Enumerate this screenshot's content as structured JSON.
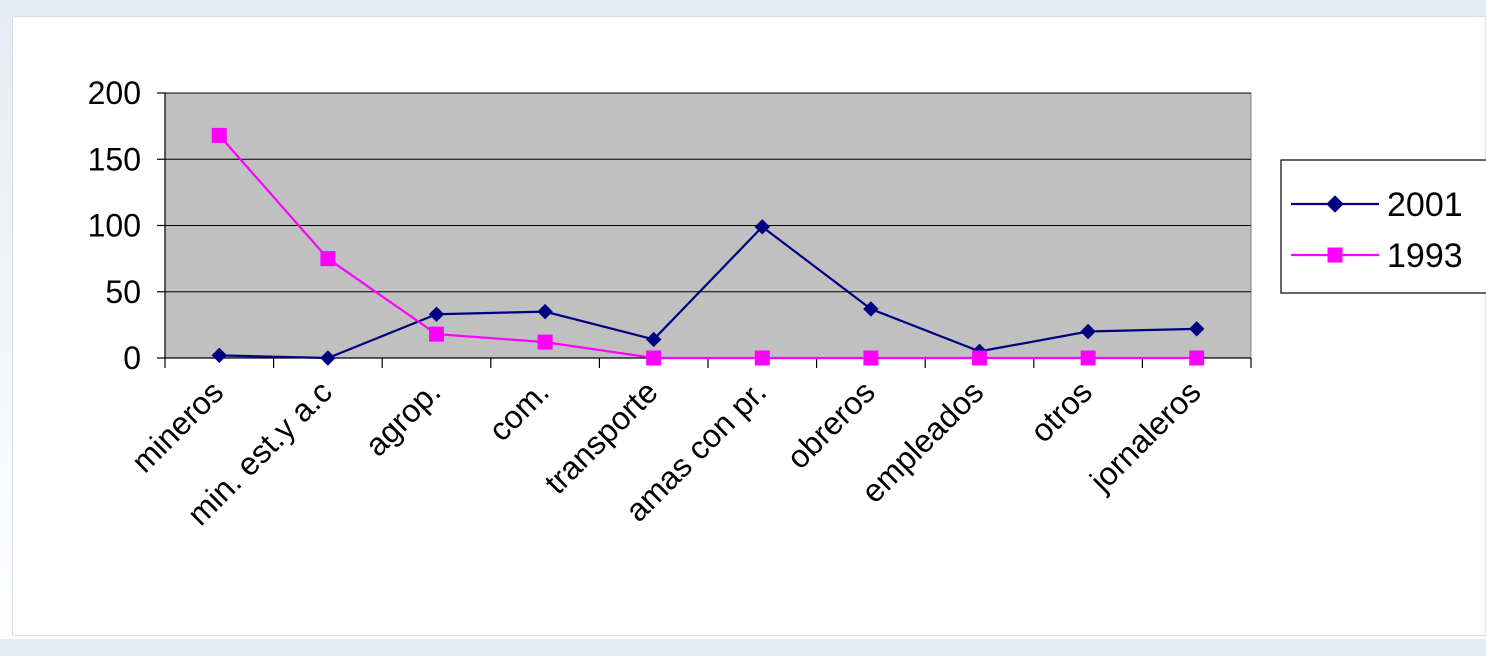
{
  "chart_data": {
    "type": "line",
    "categories": [
      "mineros",
      "min. est.y a.c",
      "agrop.",
      "com.",
      "transporte",
      "amas con pr.",
      "obreros",
      "empleados",
      "otros",
      "jornaleros"
    ],
    "series": [
      {
        "name": "2001",
        "values": [
          2,
          0,
          33,
          35,
          14,
          99,
          37,
          5,
          20,
          22
        ],
        "color": "#000080",
        "marker": "diamond"
      },
      {
        "name": "1993",
        "values": [
          168,
          75,
          18,
          12,
          0,
          0,
          0,
          0,
          0,
          0
        ],
        "color": "#ff00ff",
        "marker": "square"
      }
    ],
    "ylim": [
      0,
      200
    ],
    "yticks": [
      0,
      50,
      100,
      150,
      200
    ],
    "grid": true,
    "plot_background": "#c0c0c0",
    "legend_position": "right"
  }
}
